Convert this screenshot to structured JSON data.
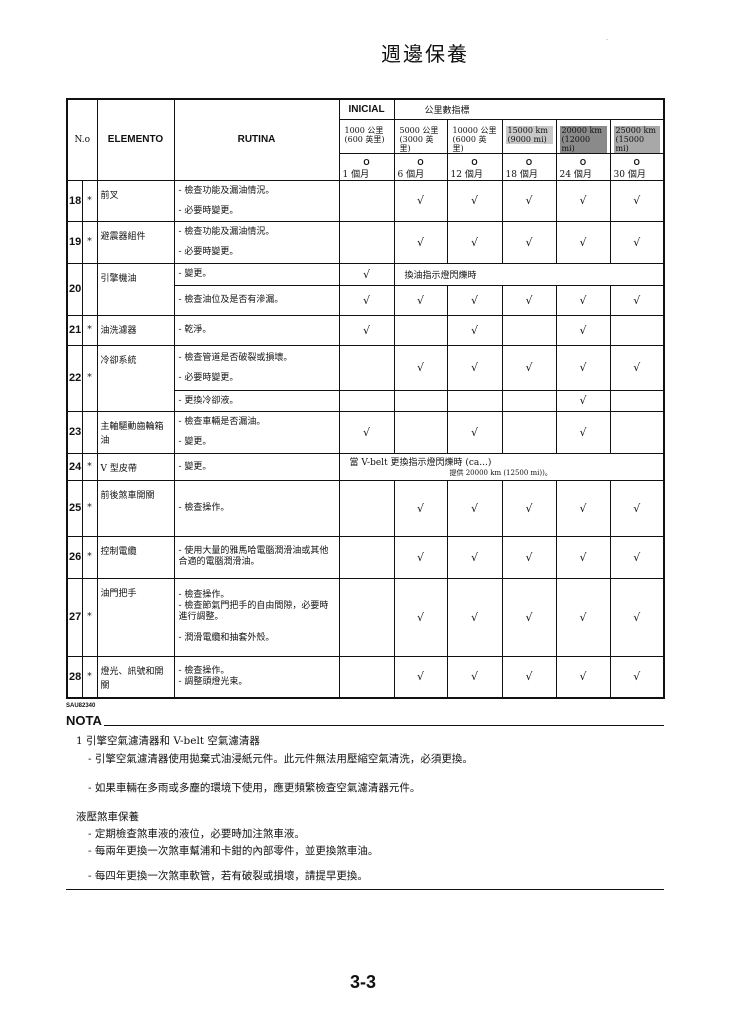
{
  "page_title": "週邊保養",
  "corner_mark": "-",
  "table": {
    "headers": {
      "no": "N.o",
      "elemento": "ELEMENTO",
      "rutina": "RUTINA",
      "inicial": "INICIAL",
      "odometer": "公里數指標"
    },
    "intervals": [
      {
        "km": "1000 公里(600 英里)",
        "month_mark": "O",
        "months": "1 個月",
        "highlight": ""
      },
      {
        "km": "5000 公里(3000 英里)",
        "month_mark": "O",
        "months": "6 個月",
        "highlight": ""
      },
      {
        "km": "10000 公里(6000 英里)",
        "month_mark": "O",
        "months": "12 個月",
        "highlight": ""
      },
      {
        "km": "15000 km (9000 mi)",
        "month_mark": "O",
        "months": "18 個月",
        "highlight": "#c8c8c8"
      },
      {
        "km": "20000 km (12000 mi)",
        "month_mark": "O",
        "months": "24 個月",
        "highlight": "#8a8a8a"
      },
      {
        "km": "25000 km (15000 mi)",
        "month_mark": "O",
        "months": "30 個月",
        "highlight": "#a8a8a8"
      }
    ],
    "rows": [
      {
        "no": "18",
        "star": "*",
        "elemento": "前叉",
        "subrows": [
          {
            "rutina": [
              "- 檢查功能及漏油情況。",
              "- 必要時變更。"
            ],
            "checks": [
              "",
              "√",
              "√",
              "√",
              "√",
              "√"
            ]
          }
        ]
      },
      {
        "no": "19",
        "star": "*",
        "elemento": "避震器組件",
        "subrows": [
          {
            "rutina": [
              "- 檢查功能及漏油情況。",
              "- 必要時變更。"
            ],
            "checks": [
              "",
              "√",
              "√",
              "√",
              "√",
              "√"
            ]
          }
        ]
      },
      {
        "no": "20",
        "star": "",
        "elemento": "引擎機油",
        "subrows": [
          {
            "rutina": [
              "- 變更。"
            ],
            "checks": [
              "√"
            ],
            "note": "換油指示燈閃爍時"
          },
          {
            "rutina": [
              "- 檢查油位及是否有滲漏。"
            ],
            "checks": [
              "√",
              "√",
              "√",
              "√",
              "√",
              "√"
            ]
          }
        ]
      },
      {
        "no": "21",
        "star": "*",
        "elemento": "油洗濾器",
        "subrows": [
          {
            "rutina": [
              "- 乾淨。"
            ],
            "checks": [
              "√",
              "",
              "√",
              "",
              "√",
              ""
            ]
          }
        ]
      },
      {
        "no": "22",
        "star": "*",
        "elemento": "冷卻系統",
        "subrows": [
          {
            "rutina": [
              "- 檢查管道是否破裂或損壞。",
              "- 必要時變更。"
            ],
            "checks": [
              "",
              "√",
              "√",
              "√",
              "√",
              "√"
            ]
          },
          {
            "rutina": [
              "- 更換冷卻液。"
            ],
            "checks": [
              "",
              "",
              "",
              "",
              "√",
              ""
            ]
          }
        ]
      },
      {
        "no": "23",
        "star": "",
        "elemento": "主軸驅動齒輪箱油",
        "subrows": [
          {
            "rutina": [
              "- 檢查車輛是否漏油。",
              "- 變更。"
            ],
            "checks": [
              "√",
              "",
              "√",
              "",
              "√",
              ""
            ]
          }
        ]
      },
      {
        "no": "24",
        "star": "*",
        "elemento": "V 型皮帶",
        "subrows": [
          {
            "rutina": [
              "- 變更。"
            ],
            "checks": [],
            "note": "當 V-belt 更換指示燈閃爍時 (ca...)",
            "note_sub": "提供 20000 km (12500 mi))。"
          }
        ]
      },
      {
        "no": "25",
        "star": "*",
        "elemento": "前後煞車開關",
        "subrows": [
          {
            "rutina": [
              "- 檢查操作。"
            ],
            "checks": [
              "",
              "√",
              "√",
              "√",
              "√",
              "√"
            ]
          }
        ]
      },
      {
        "no": "26",
        "star": "*",
        "elemento": "控制電纜",
        "subrows": [
          {
            "rutina": [
              "- 使用大量的雅馬哈電腦潤滑油或其他合適的電腦潤滑油。"
            ],
            "checks": [
              "",
              "√",
              "√",
              "√",
              "√",
              "√"
            ]
          }
        ]
      },
      {
        "no": "27",
        "star": "*",
        "elemento": "油門把手",
        "subrows": [
          {
            "rutina": [
              "- 檢查操作。",
              "- 檢查節氣門把手的自由間隙，必要時進行調整。",
              "- 潤滑電纜和抽套外殼。"
            ],
            "checks": [
              "",
              "√",
              "√",
              "√",
              "√",
              "√"
            ]
          }
        ]
      },
      {
        "no": "28",
        "star": "*",
        "elemento": "燈光、訊號和開關",
        "subrows": [
          {
            "rutina": [
              "- 檢查操作。",
              "- 調整頭燈光束。"
            ],
            "checks": [
              "",
              "√",
              "√",
              "√",
              "√",
              "√"
            ]
          }
        ]
      }
    ]
  },
  "code": "SAU82340",
  "nota": {
    "title": "NOTA",
    "lines": [
      "1 引擎空氣濾清器和 V-belt 空氣濾清器",
      "- 引擎空氣濾清器使用拋棄式油浸紙元件。此元件無法用壓縮空氣清洗，必須更換。",
      "- 如果車輛在多雨或多塵的環境下使用，應更頻繁檢查空氣濾清器元件。",
      "液壓煞車保養",
      "- 定期檢查煞車液的液位，必要時加注煞車液。",
      "- 每兩年更換一次煞車幫浦和卡鉗的內部零件，並更換煞車油。",
      "- 每四年更換一次煞車軟管，若有破裂或損壞，請提早更換。"
    ]
  },
  "page_number": "3-3"
}
